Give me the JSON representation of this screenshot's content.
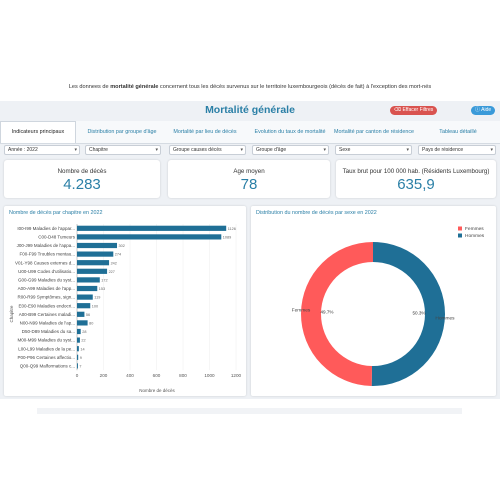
{
  "intro": {
    "before": "Les donnees de ",
    "bold": "mortalité générale",
    "after": " concernent tous les décès survenus sur le territoire luxembourgeois (décès de fait) à l'exception des mort-nés"
  },
  "header": {
    "title": "Mortalité générale",
    "clear_filters": "Effacer Filtres",
    "help": "Aide"
  },
  "tabs": [
    {
      "label": "Indicateurs principaux"
    },
    {
      "label": "Distribution par groupe d'âge"
    },
    {
      "label": "Mortalité par lieu de décès"
    },
    {
      "label": "Evolution du taux de mortalité"
    },
    {
      "label": "Mortalité par canton de résidence"
    },
    {
      "label": "Tableau détaillé"
    }
  ],
  "filters": [
    {
      "value": "Année : 2022"
    },
    {
      "value": "Chapitre"
    },
    {
      "value": "Groupe causes décès"
    },
    {
      "value": "Groupe d'âge"
    },
    {
      "value": "Sexe"
    },
    {
      "value": "Pays de résidence"
    }
  ],
  "kpis": [
    {
      "label": "Nombre de décès",
      "value": "4.283"
    },
    {
      "label": "Age moyen",
      "value": "78"
    },
    {
      "label": "Taux brut pour 100 000 hab. (Résidents Luxembourg)",
      "value": "635,9"
    }
  ],
  "colors": {
    "accent": "#2a7fa6",
    "bar": "#1f6f96",
    "women": "#ff5a5a",
    "men": "#1f6f96"
  },
  "chart_data": [
    {
      "type": "bar",
      "orientation": "horizontal",
      "title": "Nombre de décès par chapitre en 2022",
      "xlabel": "Nombre de décès",
      "ylabel": "Chapitre",
      "xlim": [
        0,
        1200
      ],
      "xticks": [
        "0",
        "200",
        "400",
        "600",
        "800",
        "1000",
        "1200"
      ],
      "categories": [
        "I00-I99 Maladies de l'appar...",
        "C00-D48 Tumeurs",
        "J00-J99 Maladies de l'appa...",
        "F00-F99 Troubles mentau...",
        "V01-Y98 Causes externes d...",
        "U00-U99 Codes d'utilisatio...",
        "G00-G99 Maladies du syst...",
        "A00-A99 Maladies de l'app...",
        "R00-R99 Symptômes, sign...",
        "E00-E90 Maladies endocri...",
        "A00-B99 Certaines maladi...",
        "N00-N99 Maladies de l'ap...",
        "D50-D89 Maladies du sa...",
        "M00-M99 Maladies du syst...",
        "L00-L99 Maladies de la pe...",
        "P00-P96 Certaines affectio...",
        "Q00-Q99 Malformations c..."
      ],
      "values": [
        1126,
        1089,
        302,
        274,
        242,
        227,
        172,
        153,
        119,
        100,
        56,
        80,
        28,
        22,
        14,
        9,
        7
      ],
      "value_labels": [
        "1126",
        "1089",
        "302",
        "274",
        "242",
        "227",
        "172",
        "153",
        "119",
        "100",
        "56",
        "80",
        "28",
        "22",
        "14",
        "9",
        "7"
      ]
    },
    {
      "type": "pie",
      "style": "donut",
      "title": "Distribution du nombre de décès par sexe en 2022",
      "slices": [
        {
          "label": "Hommes",
          "value": 50.3,
          "value_label": "50.3%",
          "color": "#1f6f96"
        },
        {
          "label": "Femmes",
          "value": 49.7,
          "value_label": "49.7%",
          "color": "#ff5a5a"
        }
      ],
      "legend": [
        "Femmes",
        "Hommes"
      ],
      "legend_position": "top-right"
    }
  ]
}
